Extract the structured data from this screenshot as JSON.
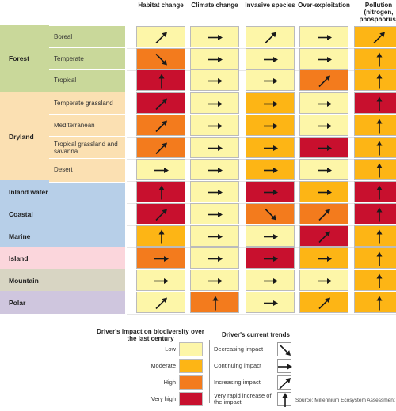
{
  "chart_data": {
    "type": "table",
    "columns": [
      "Habitat change",
      "Climate change",
      "Invasive species",
      "Over-exploitation",
      "Pollution (nitrogen, phosphorus)"
    ],
    "rows": [
      {
        "group": "Forest",
        "label": "Boreal",
        "impact": [
          "low",
          "low",
          "low",
          "low",
          "moderate"
        ],
        "trend": [
          "increasing",
          "continuing",
          "increasing",
          "continuing",
          "increasing"
        ]
      },
      {
        "group": "Forest",
        "label": "Temperate",
        "impact": [
          "high",
          "low",
          "low",
          "low",
          "moderate"
        ],
        "trend": [
          "decreasing",
          "continuing",
          "continuing",
          "continuing",
          "very_rapid"
        ]
      },
      {
        "group": "Forest",
        "label": "Tropical",
        "impact": [
          "very_high",
          "low",
          "low",
          "high",
          "moderate"
        ],
        "trend": [
          "very_rapid",
          "continuing",
          "continuing",
          "increasing",
          "very_rapid"
        ]
      },
      {
        "group": "Dryland",
        "label": "Temperate grassland",
        "impact": [
          "very_high",
          "low",
          "moderate",
          "low",
          "very_high"
        ],
        "trend": [
          "increasing",
          "continuing",
          "continuing",
          "continuing",
          "very_rapid"
        ]
      },
      {
        "group": "Dryland",
        "label": "Mediterranean",
        "impact": [
          "high",
          "low",
          "moderate",
          "low",
          "moderate"
        ],
        "trend": [
          "increasing",
          "continuing",
          "continuing",
          "continuing",
          "very_rapid"
        ]
      },
      {
        "group": "Dryland",
        "label": "Tropical grassland and savanna",
        "impact": [
          "high",
          "low",
          "moderate",
          "very_high",
          "moderate"
        ],
        "trend": [
          "increasing",
          "continuing",
          "continuing",
          "continuing",
          "very_rapid"
        ]
      },
      {
        "group": "Dryland",
        "label": "Desert",
        "impact": [
          "low",
          "low",
          "moderate",
          "low",
          "moderate"
        ],
        "trend": [
          "continuing",
          "continuing",
          "continuing",
          "continuing",
          "very_rapid"
        ]
      },
      {
        "group": "Inland water",
        "label": "",
        "impact": [
          "very_high",
          "low",
          "very_high",
          "moderate",
          "very_high"
        ],
        "trend": [
          "very_rapid",
          "continuing",
          "continuing",
          "continuing",
          "very_rapid"
        ]
      },
      {
        "group": "Coastal",
        "label": "",
        "impact": [
          "very_high",
          "low",
          "high",
          "high",
          "very_high"
        ],
        "trend": [
          "increasing",
          "continuing",
          "decreasing",
          "increasing",
          "very_rapid"
        ]
      },
      {
        "group": "Marine",
        "label": "",
        "impact": [
          "moderate",
          "low",
          "low",
          "very_high",
          "moderate"
        ],
        "trend": [
          "very_rapid",
          "continuing",
          "continuing",
          "increasing",
          "very_rapid"
        ]
      },
      {
        "group": "Island",
        "label": "",
        "impact": [
          "high",
          "low",
          "very_high",
          "moderate",
          "moderate"
        ],
        "trend": [
          "continuing",
          "continuing",
          "continuing",
          "continuing",
          "very_rapid"
        ]
      },
      {
        "group": "Mountain",
        "label": "",
        "impact": [
          "low",
          "low",
          "low",
          "low",
          "moderate"
        ],
        "trend": [
          "continuing",
          "continuing",
          "continuing",
          "continuing",
          "very_rapid"
        ]
      },
      {
        "group": "Polar",
        "label": "",
        "impact": [
          "low",
          "high",
          "low",
          "moderate",
          "moderate"
        ],
        "trend": [
          "increasing",
          "very_rapid",
          "continuing",
          "increasing",
          "very_rapid"
        ]
      }
    ],
    "groups": [
      {
        "name": "Forest",
        "color": "#c9d89a"
      },
      {
        "name": "Dryland",
        "color": "#fbe0b2"
      },
      {
        "name": "Inland water",
        "color": "#b7cfe8"
      },
      {
        "name": "Coastal",
        "color": "#b7cfe8"
      },
      {
        "name": "Marine",
        "color": "#b7cfe8"
      },
      {
        "name": "Island",
        "color": "#fbd6dc"
      },
      {
        "name": "Mountain",
        "color": "#d8d5c3"
      },
      {
        "name": "Polar",
        "color": "#cfc6de"
      }
    ],
    "impact_legend": {
      "title": "Driver's impact on biodiversity over the last century",
      "levels": [
        {
          "key": "low",
          "label": "Low",
          "color": "#fdf6a8"
        },
        {
          "key": "moderate",
          "label": "Moderate",
          "color": "#fdb515"
        },
        {
          "key": "high",
          "label": "High",
          "color": "#f37b1d"
        },
        {
          "key": "very_high",
          "label": "Very high",
          "color": "#c8102e"
        }
      ]
    },
    "trend_legend": {
      "title": "Driver's current trends",
      "items": [
        {
          "key": "decreasing",
          "label": "Decreasing impact"
        },
        {
          "key": "continuing",
          "label": "Continuing impact"
        },
        {
          "key": "increasing",
          "label": "Increasing impact"
        },
        {
          "key": "very_rapid",
          "label": "Very rapid increase of the impact"
        }
      ]
    },
    "source": "Source: Millennium Ecosystem Assessment"
  }
}
